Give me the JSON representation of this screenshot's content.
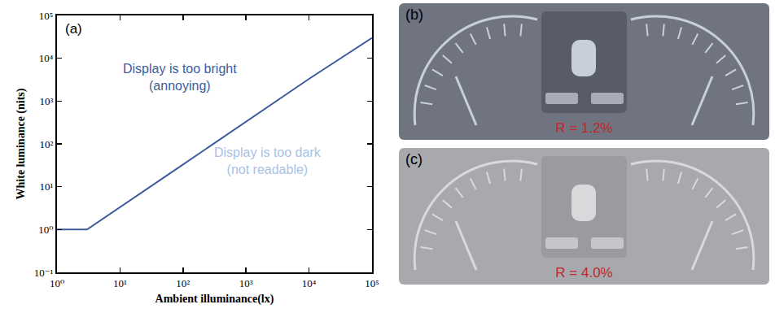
{
  "chart_data": {
    "type": "line",
    "x_label": "Ambient illuminance(lx)",
    "y_label": "White luminance (nits)",
    "log": true,
    "grid": false,
    "x": [
      1,
      3,
      100,
      10000,
      100000
    ],
    "series": [
      {
        "color": "#3d5c9c",
        "values": [
          1,
          1,
          33,
          3300,
          30000
        ]
      }
    ],
    "xlim": [
      1,
      100000
    ],
    "ylim": [
      0.1,
      100000
    ],
    "xticks": [
      {
        "value": 1,
        "label": "10⁰"
      },
      {
        "value": 10,
        "label": "10¹"
      },
      {
        "value": 100,
        "label": "10²"
      },
      {
        "value": 1000,
        "label": "10³"
      },
      {
        "value": 10000,
        "label": "10⁴"
      },
      {
        "value": 100000,
        "label": "10⁵"
      }
    ],
    "yticks": [
      {
        "value": 0.1,
        "label": "10⁻¹"
      },
      {
        "value": 1,
        "label": "10⁰"
      },
      {
        "value": 10,
        "label": "10¹"
      },
      {
        "value": 100,
        "label": "10²"
      },
      {
        "value": 1000,
        "label": "10³"
      },
      {
        "value": 10000,
        "label": "10⁴"
      },
      {
        "value": 100000,
        "label": "10⁵"
      }
    ],
    "annotations": [
      {
        "text": [
          "(a)"
        ],
        "color": "#000000"
      },
      {
        "text": [
          "Display is too bright",
          "(annoying)"
        ],
        "color": "#3d5c9c"
      },
      {
        "text": [
          "Display is too dark",
          "(not readable)"
        ],
        "color": "#a9c1e6"
      }
    ]
  },
  "photos": [
    {
      "label": "(b)",
      "caption": "R = 1.2%",
      "color": "#6f7480"
    },
    {
      "label": "(c)",
      "caption": "R = 4.0%",
      "color": "#a7a9ad"
    }
  ]
}
